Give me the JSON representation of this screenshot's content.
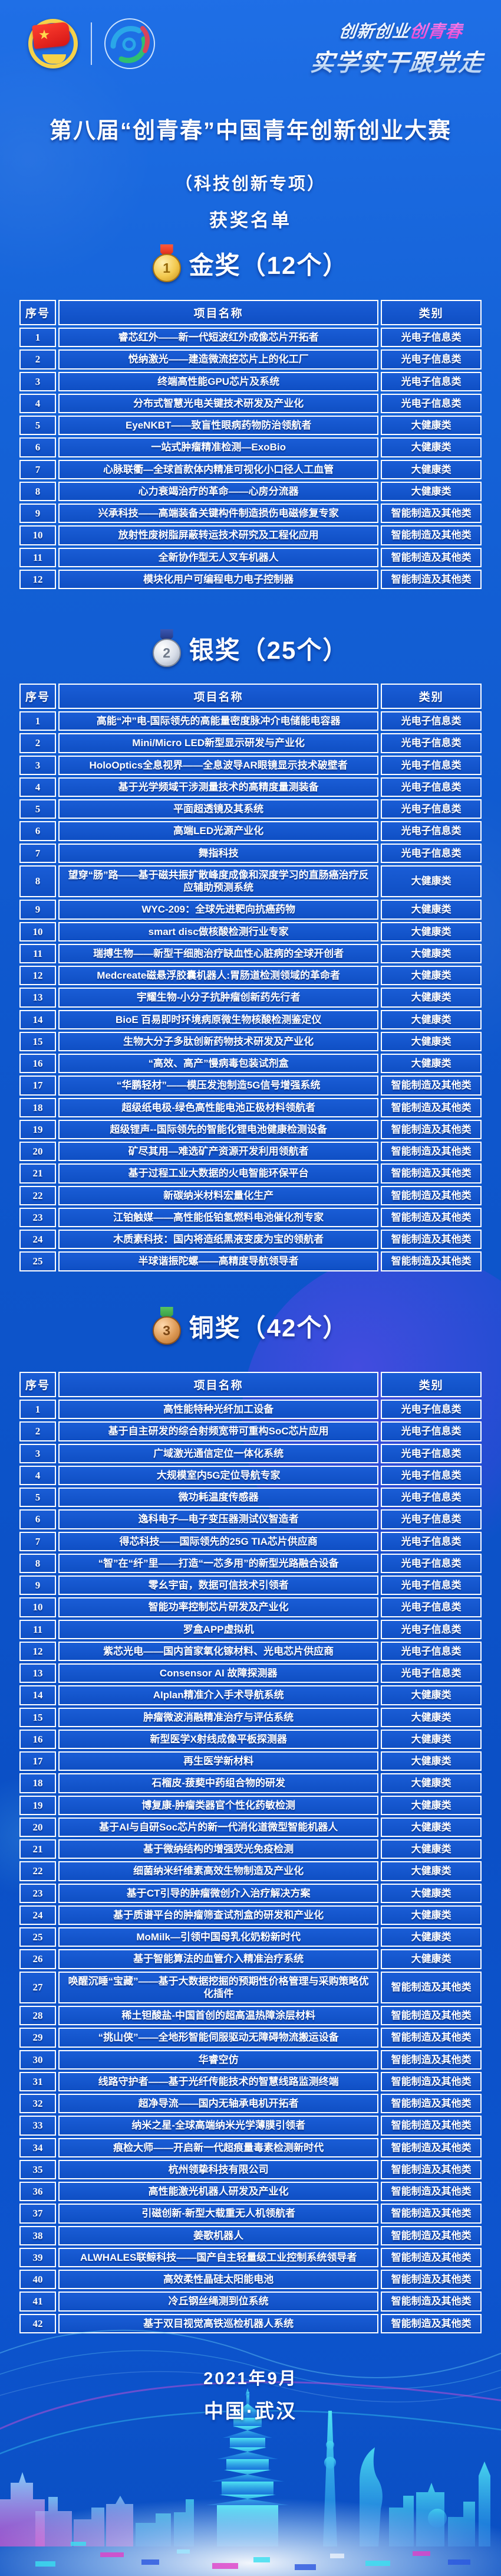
{
  "page": {
    "slogan": {
      "part1": "创新创业",
      "part2": "创青春",
      "line2": "实学实干跟党走"
    },
    "main_title": "第八届“创青春”中国青年创新创业大赛",
    "subtitle": "（科技创新专项）",
    "list_title": "获奖名单",
    "footer": {
      "date": "2021年9月",
      "location": "中国·武汉"
    }
  },
  "table_columns": {
    "no": "序号",
    "name": "项目名称",
    "category": "类别"
  },
  "colors": {
    "page_blue": "#0e57cd",
    "cell_blue": "#1557cf",
    "border_white": "#ffffff",
    "slogan_pink": "#e33fd0",
    "gold": "#f3c94e",
    "silver": "#d7dde8",
    "bronze": "#dd9a55",
    "skyline_cyan": "#3fe2f0",
    "skyline_magenta": "#e040c8"
  },
  "sections": [
    {
      "id": "gold",
      "title": "金奖（12个）",
      "medal_number": "1",
      "rows": [
        {
          "no": "1",
          "name": "睿芯红外——新一代短波红外成像芯片开拓者",
          "cat": "光电子信息类"
        },
        {
          "no": "2",
          "name": "悦纳激光——建造微流控芯片上的化工厂",
          "cat": "光电子信息类"
        },
        {
          "no": "3",
          "name": "终端高性能GPU芯片及系统",
          "cat": "光电子信息类"
        },
        {
          "no": "4",
          "name": "分布式智慧光电关键技术研发及产业化",
          "cat": "光电子信息类"
        },
        {
          "no": "5",
          "name": "EyeNKBT——致盲性眼病药物防治领航者",
          "cat": "大健康类"
        },
        {
          "no": "6",
          "name": "一站式肿瘤精准检测—ExoBio",
          "cat": "大健康类"
        },
        {
          "no": "7",
          "name": "心脉联衢—全球首款体内精准可视化小口径人工血管",
          "cat": "大健康类"
        },
        {
          "no": "8",
          "name": "心力衰竭治疗的革命——心房分流器",
          "cat": "大健康类"
        },
        {
          "no": "9",
          "name": "兴承科技——高端装备关键构件制造损伤电磁修复专家",
          "cat": "智能制造及其他类"
        },
        {
          "no": "10",
          "name": "放射性废树脂屏蔽转运技术研究及工程化应用",
          "cat": "智能制造及其他类"
        },
        {
          "no": "11",
          "name": "全新协作型无人叉车机器人",
          "cat": "智能制造及其他类"
        },
        {
          "no": "12",
          "name": "模块化用户可编程电力电子控制器",
          "cat": "智能制造及其他类"
        }
      ]
    },
    {
      "id": "silver",
      "title": "银奖（25个）",
      "medal_number": "2",
      "rows": [
        {
          "no": "1",
          "name": "高能“冲”电-国际领先的高能量密度脉冲介电储能电容器",
          "cat": "光电子信息类"
        },
        {
          "no": "2",
          "name": "Mini/Micro LED新型显示研发与产业化",
          "cat": "光电子信息类"
        },
        {
          "no": "3",
          "name": "HoloOptics全息视界——全息波导AR眼镜显示技术破壁者",
          "cat": "光电子信息类"
        },
        {
          "no": "4",
          "name": "基于光学频域干涉测量技术的高精度量测装备",
          "cat": "光电子信息类"
        },
        {
          "no": "5",
          "name": "平面超透镜及其系统",
          "cat": "光电子信息类"
        },
        {
          "no": "6",
          "name": "高端LED光源产业化",
          "cat": "光电子信息类"
        },
        {
          "no": "7",
          "name": "舞指科技",
          "cat": "光电子信息类"
        },
        {
          "no": "8",
          "name": "望穿“肠”路——基于磁共振扩散峰度成像和深度学习的直肠癌治疗反应辅助预测系统",
          "cat": "大健康类"
        },
        {
          "no": "9",
          "name": "WYC-209：全球先进靶向抗癌药物",
          "cat": "大健康类"
        },
        {
          "no": "10",
          "name": "smart disc做核酸检测行业专家",
          "cat": "大健康类"
        },
        {
          "no": "11",
          "name": "瑞搏生物——新型干细胞治疗缺血性心脏病的全球开创者",
          "cat": "大健康类"
        },
        {
          "no": "12",
          "name": "Medcreate磁悬浮胶囊机器人:胃肠道检测领域的革命者",
          "cat": "大健康类"
        },
        {
          "no": "13",
          "name": "宇耀生物-小分子抗肿瘤创新药先行者",
          "cat": "大健康类"
        },
        {
          "no": "14",
          "name": "BioE 百易即时环境病原微生物核酸检测鉴定仪",
          "cat": "大健康类"
        },
        {
          "no": "15",
          "name": "生物大分子多肽创新药物技术研发及产业化",
          "cat": "大健康类"
        },
        {
          "no": "16",
          "name": "“高效、高产”慢病毒包装试剂盒",
          "cat": "大健康类"
        },
        {
          "no": "17",
          "name": "“华鹏轻材”——模压发泡制造5G信号增强系统",
          "cat": "智能制造及其他类"
        },
        {
          "no": "18",
          "name": "超级纸电极-绿色高性能电池正极材料领航者",
          "cat": "智能制造及其他类"
        },
        {
          "no": "19",
          "name": "超级锂声--国际领先的智能化锂电池健康检测设备",
          "cat": "智能制造及其他类"
        },
        {
          "no": "20",
          "name": "矿尽其用—难选矿产资源开发利用领航者",
          "cat": "智能制造及其他类"
        },
        {
          "no": "21",
          "name": "基于过程工业大数据的火电智能环保平台",
          "cat": "智能制造及其他类"
        },
        {
          "no": "22",
          "name": "新碳纳米材料宏量化生产",
          "cat": "智能制造及其他类"
        },
        {
          "no": "23",
          "name": "江铂触媒——高性能低铂氢燃料电池催化剂专家",
          "cat": "智能制造及其他类"
        },
        {
          "no": "24",
          "name": "木质素科技：国内将造纸黑液变废为宝的领航者",
          "cat": "智能制造及其他类"
        },
        {
          "no": "25",
          "name": "半球谐振陀螺——高精度导航领导者",
          "cat": "智能制造及其他类"
        }
      ]
    },
    {
      "id": "bronze",
      "title": "铜奖（42个）",
      "medal_number": "3",
      "rows": [
        {
          "no": "1",
          "name": "高性能特种光纤加工设备",
          "cat": "光电子信息类"
        },
        {
          "no": "2",
          "name": "基于自主研发的综合射频宽带可重构SoC芯片应用",
          "cat": "光电子信息类"
        },
        {
          "no": "3",
          "name": "广域激光通信定位一体化系统",
          "cat": "光电子信息类"
        },
        {
          "no": "4",
          "name": "大规模室内5G定位导航专家",
          "cat": "光电子信息类"
        },
        {
          "no": "5",
          "name": "微功耗温度传感器",
          "cat": "光电子信息类"
        },
        {
          "no": "6",
          "name": "逸科电子—电子变压器测试仪智造者",
          "cat": "光电子信息类"
        },
        {
          "no": "7",
          "name": "得芯科技——国际领先的25G TIA芯片供应商",
          "cat": "光电子信息类"
        },
        {
          "no": "8",
          "name": "“智”在“纤”里——打造“一芯多用”的新型光路融合设备",
          "cat": "光电子信息类"
        },
        {
          "no": "9",
          "name": "零幺宇宙，数据可信技术引领者",
          "cat": "光电子信息类"
        },
        {
          "no": "10",
          "name": "智能功率控制芯片研发及产业化",
          "cat": "光电子信息类"
        },
        {
          "no": "11",
          "name": "罗盒APP虚拟机",
          "cat": "光电子信息类"
        },
        {
          "no": "12",
          "name": "紫芯光电——国内首家氧化镓材料、光电芯片供应商",
          "cat": "光电子信息类"
        },
        {
          "no": "13",
          "name": "Consensor AI 故障探测器",
          "cat": "光电子信息类"
        },
        {
          "no": "14",
          "name": "AIplan精准介入手术导航系统",
          "cat": "大健康类"
        },
        {
          "no": "15",
          "name": "肿瘤微波消融精准治疗与评估系统",
          "cat": "大健康类"
        },
        {
          "no": "16",
          "name": "新型医学X射线成像平板探测器",
          "cat": "大健康类"
        },
        {
          "no": "17",
          "name": "再生医学新材料",
          "cat": "大健康类"
        },
        {
          "no": "18",
          "name": "石榴皮-菝葜中药组合物的研发",
          "cat": "大健康类"
        },
        {
          "no": "19",
          "name": "博复康-肿瘤类器官个性化药敏检测",
          "cat": "大健康类"
        },
        {
          "no": "20",
          "name": "基于AI与自研Soc芯片的新一代消化道微型智能机器人",
          "cat": "大健康类"
        },
        {
          "no": "21",
          "name": "基于微纳结构的增强荧光免疫检测",
          "cat": "大健康类"
        },
        {
          "no": "22",
          "name": "细菌纳米纤维素高效生物制造及产业化",
          "cat": "大健康类"
        },
        {
          "no": "23",
          "name": "基于CT引导的肿瘤微创介入治疗解决方案",
          "cat": "大健康类"
        },
        {
          "no": "24",
          "name": "基于质谱平台的肿瘤筛查试剂盒的研发和产业化",
          "cat": "大健康类"
        },
        {
          "no": "25",
          "name": "MoMilk—引领中国母乳化奶粉新时代",
          "cat": "大健康类"
        },
        {
          "no": "26",
          "name": "基于智能算法的血管介入精准治疗系统",
          "cat": "大健康类"
        },
        {
          "no": "27",
          "name": "唤醒沉睡“宝藏”——基于大数据挖掘的预期性价格管理与采购策略优化插件",
          "cat": "智能制造及其他类"
        },
        {
          "no": "28",
          "name": "稀土钽酸盐-中国首创的超高温热障涂层材料",
          "cat": "智能制造及其他类"
        },
        {
          "no": "29",
          "name": "“挑山侠”——全地形智能伺服驱动无障碍物流搬运设备",
          "cat": "智能制造及其他类"
        },
        {
          "no": "30",
          "name": "华睿空仿",
          "cat": "智能制造及其他类"
        },
        {
          "no": "31",
          "name": "线路守护者——基于光纤传能技术的智慧线路监测终端",
          "cat": "智能制造及其他类"
        },
        {
          "no": "32",
          "name": "超净导流——国内无轴承电机开拓者",
          "cat": "智能制造及其他类"
        },
        {
          "no": "33",
          "name": "纳米之星-全球高端纳米光学薄膜引领者",
          "cat": "智能制造及其他类"
        },
        {
          "no": "34",
          "name": "痕检大师——开启新一代超痕量毒素检测新时代",
          "cat": "智能制造及其他类"
        },
        {
          "no": "35",
          "name": "杭州领挚科技有限公司",
          "cat": "智能制造及其他类"
        },
        {
          "no": "36",
          "name": "高性能激光机器人研发及产业化",
          "cat": "智能制造及其他类"
        },
        {
          "no": "37",
          "name": "引磁创新-新型大载重无人机领航者",
          "cat": "智能制造及其他类"
        },
        {
          "no": "38",
          "name": "姜歌机器人",
          "cat": "智能制造及其他类"
        },
        {
          "no": "39",
          "name": "ALWHALES联鲸科技——国产自主轻量级工业控制系统领导者",
          "cat": "智能制造及其他类"
        },
        {
          "no": "40",
          "name": "高效柔性晶硅太阳能电池",
          "cat": "智能制造及其他类"
        },
        {
          "no": "41",
          "name": "冷丘钢丝绳测到位系统",
          "cat": "智能制造及其他类"
        },
        {
          "no": "42",
          "name": "基于双目视觉高铁巡检机器人系统",
          "cat": "智能制造及其他类"
        }
      ]
    }
  ]
}
